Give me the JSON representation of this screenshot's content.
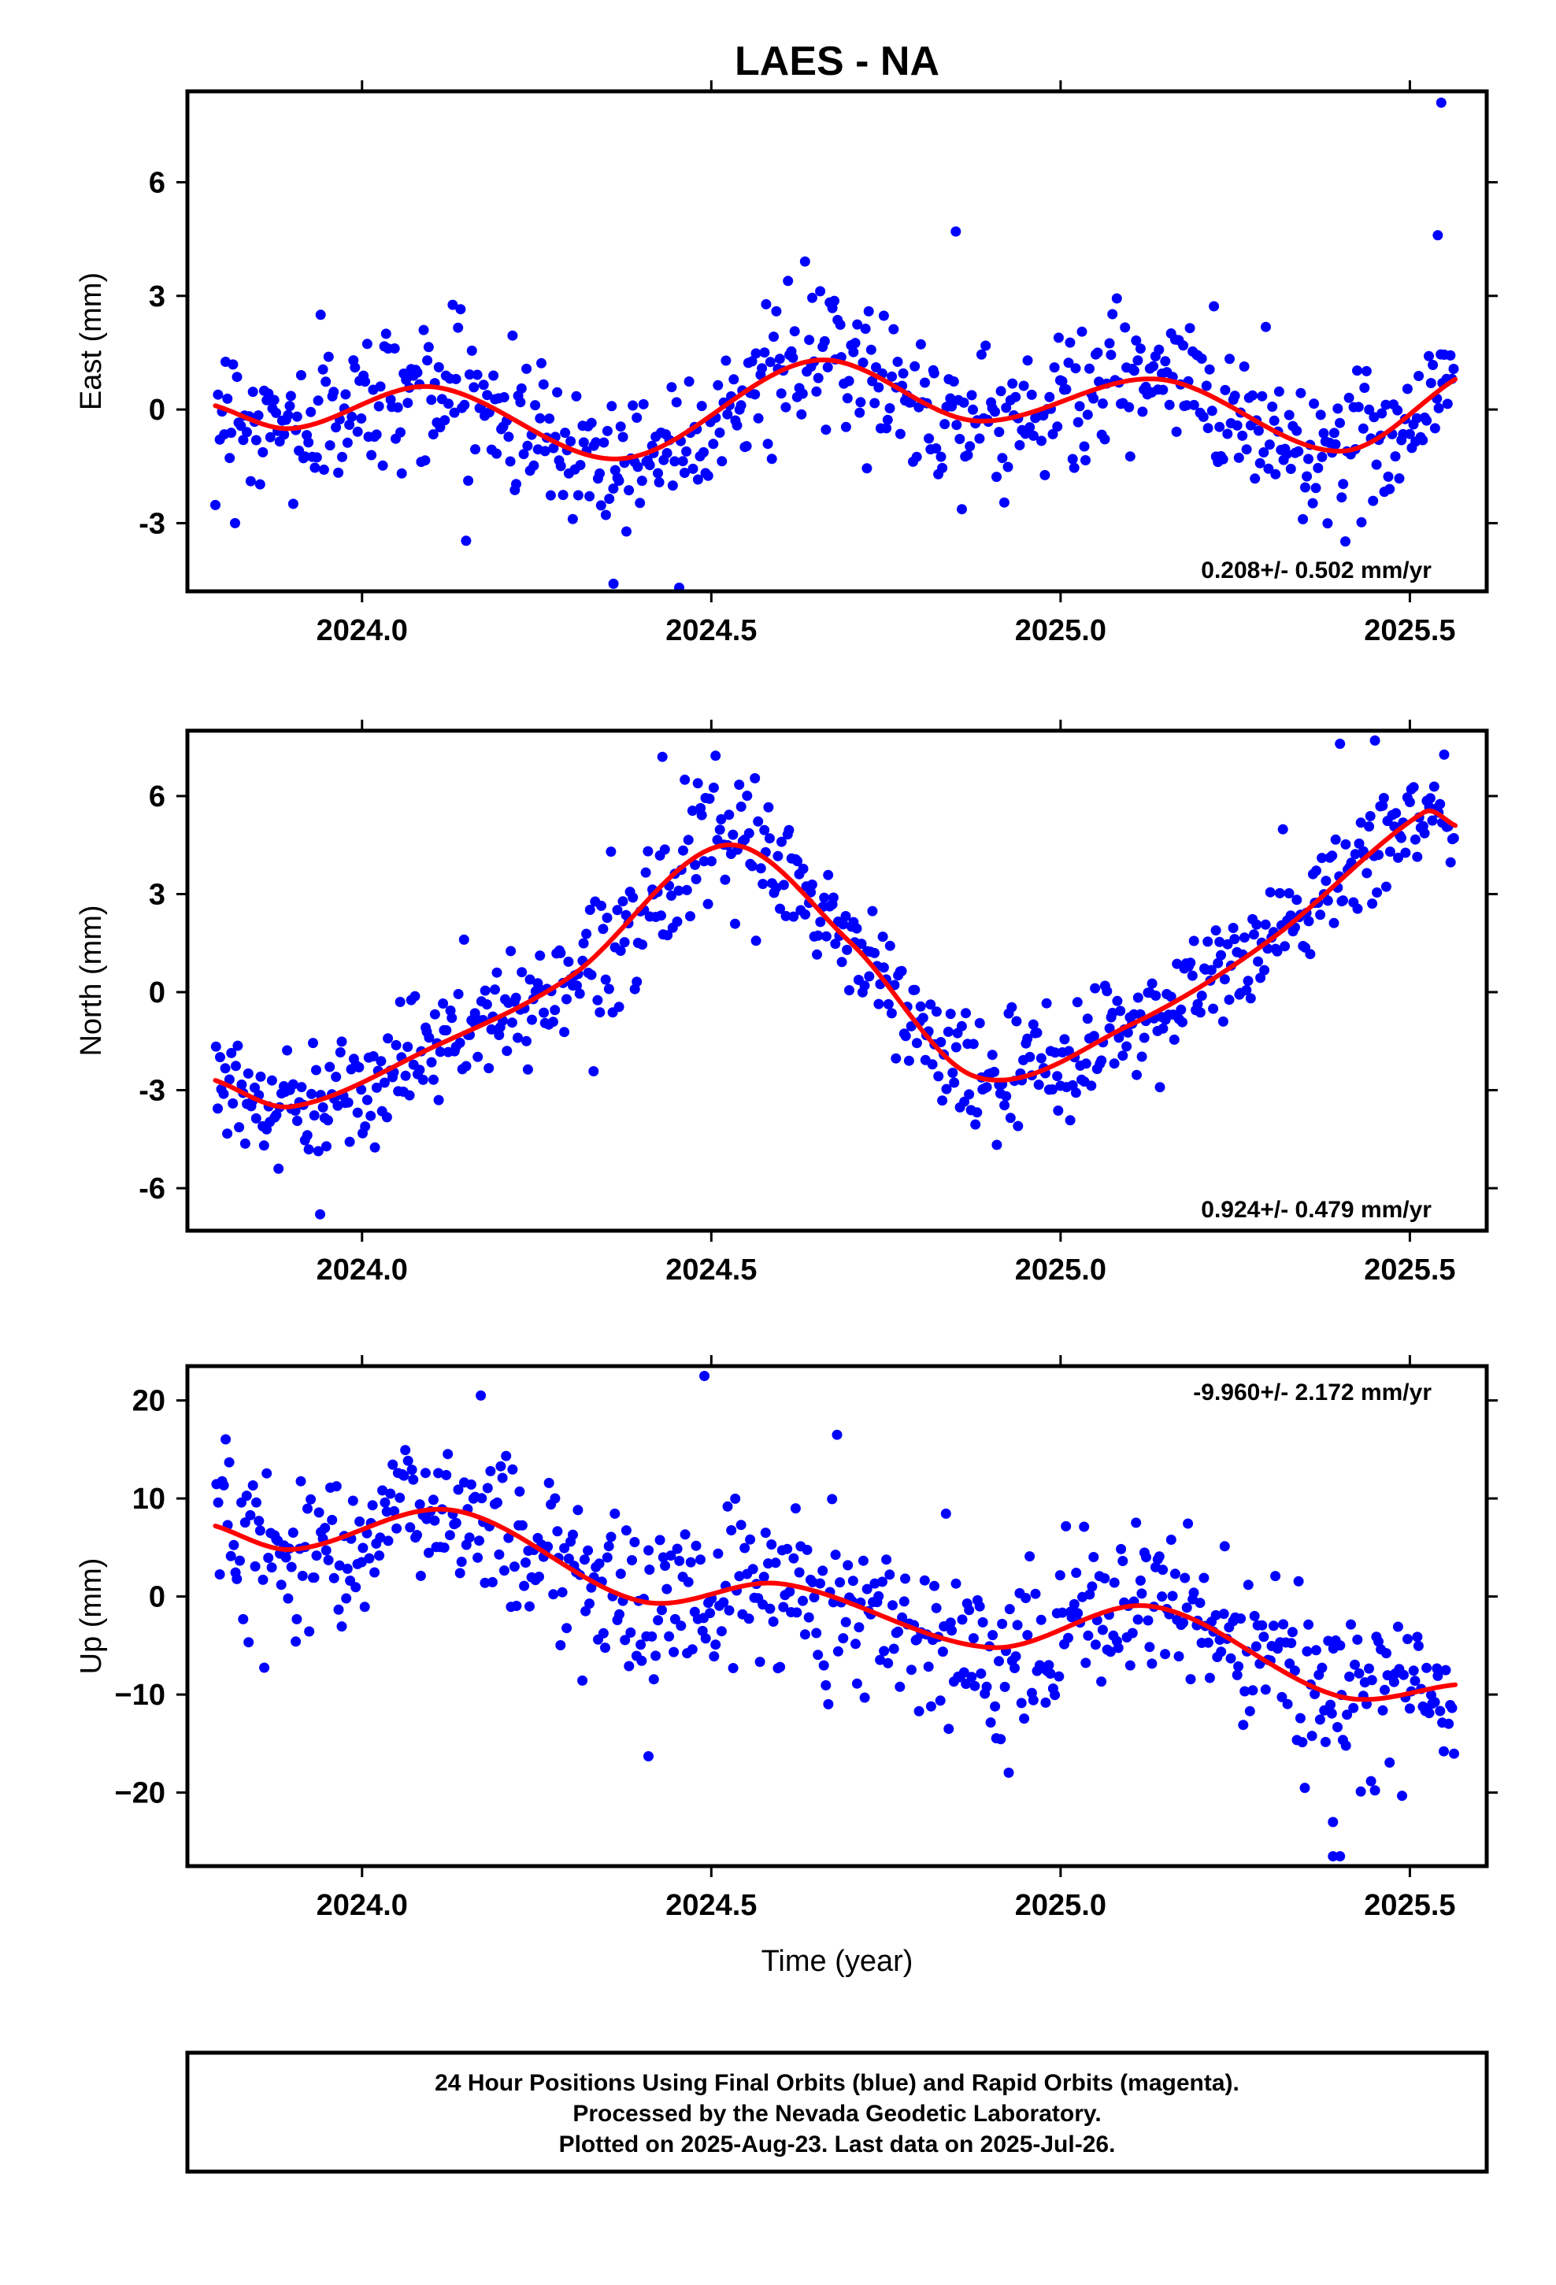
{
  "chart_data": {
    "title": "LAES - NA",
    "type": "scatter",
    "xlabel": "Time (year)",
    "xlim": [
      2023.75,
      2025.61
    ],
    "x_ticks": [
      2024.0,
      2024.5,
      2025.0,
      2025.5
    ],
    "x_tick_labels": [
      "2024.0",
      "2024.5",
      "2025.0",
      "2025.5"
    ],
    "first_obs": 2023.79,
    "last_obs": 2025.565,
    "panels": [
      {
        "id": "east",
        "ylabel": "East (mm)",
        "ylim": [
          -4.8,
          8.4
        ],
        "y_ticks": [
          -3,
          0,
          3,
          6
        ],
        "y_tick_labels": [
          "-3",
          "0",
          "3",
          "6"
        ],
        "rate_text": "0.208+/- 0.502 mm/yr",
        "rate_position": "bottom-right",
        "series": [
          {
            "name": "24 Hour Positions (Final Orbits)",
            "color": "#0000ff",
            "marker": "dot",
            "model": {
              "mean": 0.0,
              "trend_per_year": 0.208,
              "anchor_year": 2024.7,
              "annual": [
                {
                  "amp": 0.95,
                  "phase": 2.28
                }
              ],
              "semiannual": [
                {
                  "amp": 0.18,
                  "phase": 1.95
                }
              ]
            },
            "noise_sd": 0.95,
            "n_points": 640,
            "outliers": [
              [
                2024.85,
                4.7
              ],
              [
                2025.545,
                8.1
              ],
              [
                2024.36,
                -4.6
              ],
              [
                2025.54,
                4.6
              ]
            ]
          },
          {
            "name": "Model fit",
            "color": "#ff0000",
            "line": true,
            "control_points": [
              [
                2023.79,
                0.1
              ],
              [
                2023.9,
                -0.5
              ],
              [
                2024.1,
                0.6
              ],
              [
                2024.37,
                -1.3
              ],
              [
                2024.65,
                1.3
              ],
              [
                2024.88,
                -0.3
              ],
              [
                2025.14,
                0.8
              ],
              [
                2025.4,
                -1.1
              ],
              [
                2025.565,
                0.8
              ]
            ]
          }
        ]
      },
      {
        "id": "north",
        "ylabel": "North (mm)",
        "ylim": [
          -7.3,
          8.0
        ],
        "y_ticks": [
          -6,
          -3,
          0,
          3,
          6
        ],
        "y_tick_labels": [
          "-6",
          "-3",
          "0",
          "3",
          "6"
        ],
        "rate_text": "0.924+/- 0.479 mm/yr",
        "rate_position": "bottom-right",
        "series": [
          {
            "name": "24 Hour Positions (Final Orbits)",
            "color": "#0000ff",
            "marker": "dot",
            "noise_sd": 0.9,
            "n_points": 640,
            "outliers": [
              [
                2023.94,
                -6.8
              ],
              [
                2025.4,
                7.6
              ],
              [
                2025.45,
                7.7
              ],
              [
                2024.43,
                7.2
              ]
            ]
          },
          {
            "name": "Model fit",
            "color": "#ff0000",
            "line": true,
            "control_points": [
              [
                2023.79,
                -2.7
              ],
              [
                2023.9,
                -3.5
              ],
              [
                2024.1,
                -1.7
              ],
              [
                2024.3,
                0.5
              ],
              [
                2024.52,
                4.5
              ],
              [
                2024.7,
                1.5
              ],
              [
                2024.88,
                -2.6
              ],
              [
                2025.1,
                -1.0
              ],
              [
                2025.3,
                1.6
              ],
              [
                2025.52,
                5.5
              ],
              [
                2025.565,
                5.1
              ]
            ]
          }
        ]
      },
      {
        "id": "up",
        "ylabel": "Up (mm)",
        "ylim": [
          -27.5,
          23.5
        ],
        "y_ticks": [
          -20,
          -10,
          0,
          10,
          20
        ],
        "y_tick_labels": [
          "−20",
          "−10",
          "0",
          "10",
          "20"
        ],
        "rate_text": "-9.960+/- 2.172 mm/yr",
        "rate_position": "top-right",
        "series": [
          {
            "name": "24 Hour Positions (Final Orbits)",
            "color": "#0000ff",
            "marker": "dot",
            "noise_sd": 4.0,
            "n_points": 640,
            "outliers": [
              [
                2024.49,
                22.5
              ],
              [
                2024.68,
                16.5
              ],
              [
                2024.41,
                -16.3
              ],
              [
                2025.39,
                -26.5
              ],
              [
                2025.4,
                -26.5
              ],
              [
                2025.39,
                -23.0
              ],
              [
                2024.17,
                20.5
              ]
            ]
          },
          {
            "name": "Model fit",
            "color": "#ff0000",
            "line": true,
            "control_points": [
              [
                2023.79,
                7.2
              ],
              [
                2023.9,
                4.8
              ],
              [
                2024.13,
                8.8
              ],
              [
                2024.4,
                -0.5
              ],
              [
                2024.6,
                1.3
              ],
              [
                2024.9,
                -5.2
              ],
              [
                2025.13,
                -1.0
              ],
              [
                2025.4,
                -10.2
              ],
              [
                2025.565,
                -9.0
              ]
            ]
          }
        ]
      }
    ],
    "footnote": [
      "24 Hour Positions Using Final Orbits (blue) and Rapid Orbits (magenta).",
      "Processed by the Nevada Geodetic Laboratory.",
      "Plotted on 2025-Aug-23. Last data on 2025-Jul-26."
    ]
  }
}
